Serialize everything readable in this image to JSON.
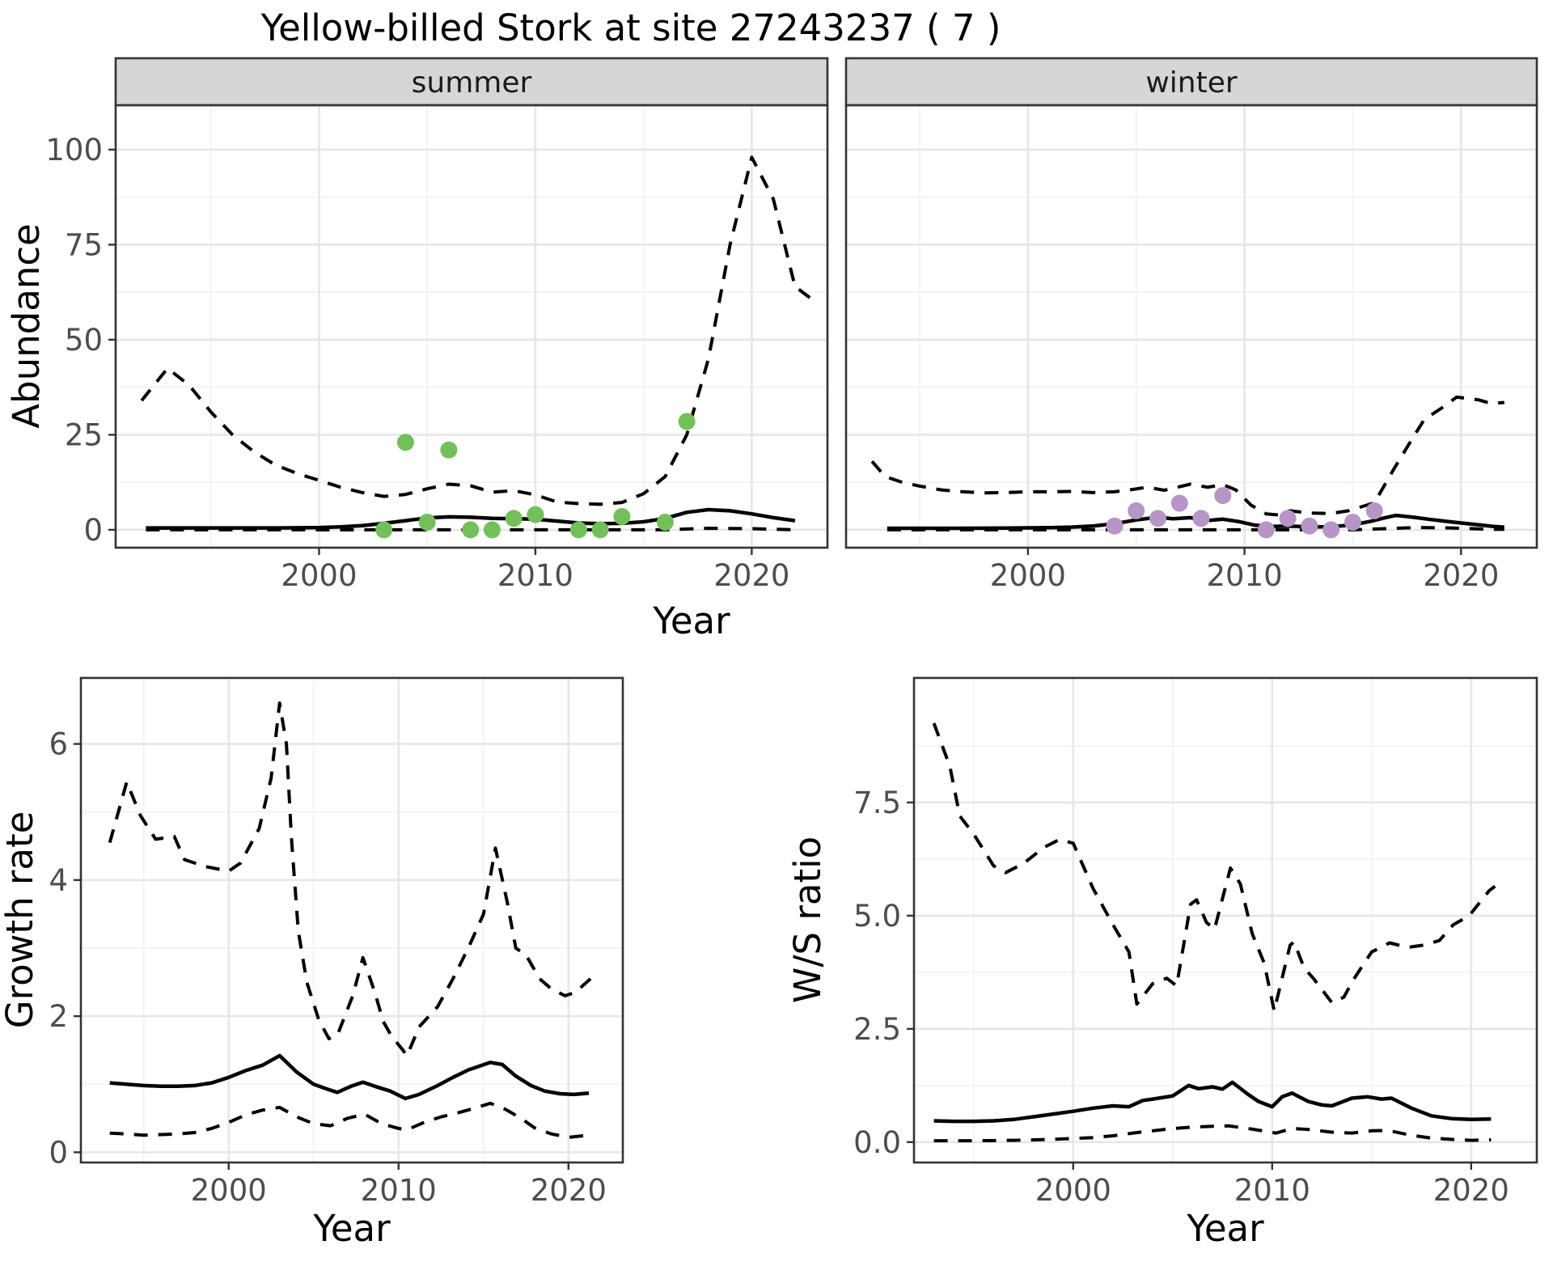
{
  "title": "Yellow-billed Stork at site 27243237 ( 7 )",
  "labels": {
    "abundance": "Abundance",
    "year": "Year",
    "growth_rate": "Growth rate",
    "ws_ratio": "W/S ratio"
  },
  "facets": {
    "summer": "summer",
    "winter": "winter"
  },
  "colors": {
    "summer_points": "#73c05b",
    "winter_points": "#b795c7",
    "line": "#000000",
    "strip_fill": "#d6d6d6",
    "panel_border": "#333333",
    "grid_major": "#e6e6e6",
    "grid_minor": "#f2f2f2",
    "tick_text": "#4d4d4d"
  },
  "chart_data": [
    {
      "id": "abundance-summer",
      "type": "line",
      "facet": "summer",
      "title": "",
      "xlabel": "Year",
      "ylabel": "Abundance",
      "xlim": [
        1990.6,
        2023.5
      ],
      "ylim": [
        -4.7,
        111.7
      ],
      "xticks": [
        2000,
        2010,
        2020
      ],
      "xtick_labels": [
        "2000",
        "2010",
        "2020"
      ],
      "yticks": [
        0,
        25,
        50,
        75,
        100
      ],
      "ytick_labels": [
        "0",
        "25",
        "50",
        "75",
        "100"
      ],
      "grid": true,
      "series": [
        {
          "name": "upper-95ci",
          "style": "dashed",
          "x": [
            1991.8,
            1993,
            1994,
            1995,
            1996,
            1997,
            1998,
            1999,
            2000,
            2001,
            2002,
            2003,
            2004,
            2005,
            2006,
            2007,
            2008,
            2009,
            2010,
            2011,
            2012,
            2013,
            2014,
            2015,
            2016,
            2017,
            2018,
            2019,
            2020,
            2021,
            2022,
            2022.7
          ],
          "y": [
            34,
            42.5,
            38,
            31,
            25,
            20.5,
            17,
            14.8,
            13,
            11.2,
            9.8,
            8.8,
            9.3,
            10.8,
            12,
            11.6,
            9.9,
            10.3,
            9.2,
            7.3,
            6.9,
            6.7,
            7.2,
            9.5,
            14,
            25,
            45,
            75,
            98,
            87,
            64,
            61
          ]
        },
        {
          "name": "median",
          "style": "solid",
          "x": [
            1992,
            1994,
            1996,
            1998,
            2000,
            2001,
            2002,
            2003,
            2004,
            2005,
            2006,
            2007,
            2008,
            2009,
            2010,
            2011,
            2012,
            2013,
            2014,
            2015,
            2016,
            2017,
            2018,
            2019,
            2020,
            2021,
            2022
          ],
          "y": [
            0.5,
            0.5,
            0.5,
            0.5,
            0.6,
            0.8,
            1.1,
            1.7,
            2.4,
            3.1,
            3.4,
            3.3,
            3.0,
            2.9,
            2.8,
            2.3,
            1.8,
            1.6,
            1.7,
            2.1,
            3.0,
            4.6,
            5.3,
            5.0,
            4.2,
            3.2,
            2.4
          ]
        },
        {
          "name": "lower-95ci",
          "style": "dashed",
          "x": [
            1992,
            2000,
            2010,
            2016,
            2018,
            2020,
            2022
          ],
          "y": [
            0,
            0,
            0,
            0,
            0.4,
            0.3,
            0
          ]
        }
      ],
      "observations": {
        "color": "summer_points",
        "x": [
          2003,
          2004,
          2005,
          2006,
          2007,
          2008,
          2009,
          2010,
          2012,
          2013,
          2014,
          2016,
          2017
        ],
        "y": [
          0,
          23,
          2,
          21,
          0,
          0,
          3,
          4,
          0,
          0,
          3.5,
          2,
          28.5
        ]
      }
    },
    {
      "id": "abundance-winter",
      "type": "line",
      "facet": "winter",
      "title": "",
      "xlabel": "Year",
      "ylabel": "Abundance",
      "xlim": [
        1991.6,
        2023.5
      ],
      "ylim": [
        -4.7,
        111.7
      ],
      "xticks": [
        2000,
        2010,
        2020
      ],
      "xtick_labels": [
        "2000",
        "2010",
        "2020"
      ],
      "yticks": [
        0,
        25,
        50,
        75,
        100
      ],
      "ytick_labels": [
        "0",
        "25",
        "50",
        "75",
        "100"
      ],
      "grid": true,
      "series": [
        {
          "name": "upper-95ci",
          "style": "dashed",
          "x": [
            1992.8,
            1993.4,
            1994.2,
            1995,
            1996,
            1997,
            1998,
            1999,
            2000,
            2001,
            2002,
            2003,
            2004,
            2004.6,
            2005.5,
            2006.3,
            2007.5,
            2008.3,
            2009,
            2009.6,
            2010.3,
            2011,
            2011.6,
            2012.1,
            2013,
            2014,
            2014.8,
            2016,
            2016.9,
            2017.7,
            2018.3,
            2019.1,
            2019.8,
            2020.8,
            2021.4,
            2022
          ],
          "y": [
            18,
            14,
            12.5,
            11.5,
            10.5,
            10,
            9.7,
            9.8,
            10,
            10,
            10.1,
            9.8,
            10,
            10.4,
            11.2,
            10.4,
            12,
            11.2,
            11.9,
            10.5,
            6.5,
            4.2,
            3.9,
            5,
            4.4,
            4.3,
            5,
            7.1,
            16,
            23.5,
            29,
            32,
            34.9,
            34.2,
            33.2,
            33.5
          ]
        },
        {
          "name": "median",
          "style": "solid",
          "x": [
            1993.5,
            1995,
            1997,
            1999,
            2001,
            2002,
            2003,
            2004,
            2005,
            2006,
            2006.7,
            2007.5,
            2008.2,
            2009,
            2009.7,
            2010.5,
            2011.3,
            2012,
            2013,
            2014,
            2015,
            2015.8,
            2016.5,
            2017,
            2017.8,
            2018.6,
            2019.5,
            2020.5,
            2021.5,
            2022
          ],
          "y": [
            0.4,
            0.4,
            0.4,
            0.45,
            0.55,
            0.7,
            1.0,
            1.6,
            2.6,
            3.3,
            2.9,
            3.2,
            2.4,
            2.8,
            2.2,
            1.2,
            0.9,
            1.0,
            0.8,
            0.8,
            1.3,
            2.2,
            3.2,
            3.8,
            3.3,
            2.7,
            2.1,
            1.5,
            0.9,
            0.7
          ]
        },
        {
          "name": "lower-95ci",
          "style": "dashed",
          "x": [
            1993.5,
            2000,
            2010,
            2015,
            2016.5,
            2018,
            2019.5,
            2021,
            2022
          ],
          "y": [
            0,
            0,
            0,
            0,
            0.3,
            0.6,
            0.5,
            0.2,
            0.1
          ]
        }
      ],
      "observations": {
        "color": "winter_points",
        "x": [
          2004,
          2005,
          2006,
          2007,
          2008,
          2009,
          2011,
          2012,
          2013,
          2014,
          2015,
          2016
        ],
        "y": [
          1,
          5,
          3,
          7,
          3,
          9,
          0,
          3,
          1,
          0,
          2,
          5
        ]
      }
    },
    {
      "id": "growth-rate",
      "type": "line",
      "facet": "",
      "title": "",
      "xlabel": "Year",
      "ylabel": "Growth rate",
      "xlim": [
        1991.3,
        2023.2
      ],
      "ylim": [
        -0.15,
        6.97
      ],
      "xticks": [
        2000,
        2010,
        2020
      ],
      "xtick_labels": [
        "2000",
        "2010",
        "2020"
      ],
      "yticks": [
        0,
        2,
        4,
        6
      ],
      "ytick_labels": [
        "0",
        "2",
        "4",
        "6"
      ],
      "grid": true,
      "series": [
        {
          "name": "upper-95ci",
          "style": "dashed",
          "x": [
            1993,
            1994,
            1994.8,
            1995.7,
            1996.8,
            1997.4,
            1998.6,
            2000,
            2000.7,
            2001.8,
            2002.5,
            2003,
            2003.4,
            2003.7,
            2004.1,
            2004.6,
            2005.3,
            2005.9,
            2006.4,
            2007.3,
            2007.9,
            2008.6,
            2009.1,
            2009.6,
            2010.1,
            2010.5,
            2011.2,
            2012.3,
            2013.2,
            2014.1,
            2015,
            2015.7,
            2016.4,
            2016.9,
            2017.5,
            2018.3,
            2019,
            2019.8,
            2020.4,
            2021.3
          ],
          "y": [
            4.55,
            5.44,
            4.95,
            4.6,
            4.64,
            4.3,
            4.2,
            4.13,
            4.25,
            4.76,
            5.5,
            6.6,
            6.0,
            4.6,
            3.25,
            2.5,
            1.95,
            1.67,
            1.72,
            2.3,
            2.86,
            2.35,
            1.92,
            1.7,
            1.55,
            1.42,
            1.84,
            2.14,
            2.55,
            3.0,
            3.5,
            4.47,
            3.67,
            3.0,
            2.9,
            2.55,
            2.4,
            2.3,
            2.35,
            2.55
          ]
        },
        {
          "name": "median",
          "style": "solid",
          "x": [
            1993,
            1994,
            1995,
            1996,
            1997,
            1998,
            1999,
            2000,
            2001,
            2002,
            2003,
            2004,
            2005,
            2005.9,
            2006.4,
            2007.2,
            2007.9,
            2008.6,
            2009.5,
            2010.4,
            2011.2,
            2012.3,
            2013.2,
            2014.1,
            2015.4,
            2016.1,
            2016.9,
            2017.8,
            2018.6,
            2019.5,
            2020.3,
            2021.2
          ],
          "y": [
            1.02,
            1.0,
            0.98,
            0.97,
            0.97,
            0.98,
            1.02,
            1.1,
            1.2,
            1.28,
            1.42,
            1.18,
            1.0,
            0.92,
            0.88,
            0.97,
            1.03,
            0.97,
            0.9,
            0.79,
            0.85,
            0.98,
            1.1,
            1.21,
            1.32,
            1.29,
            1.12,
            0.98,
            0.9,
            0.86,
            0.85,
            0.87
          ]
        },
        {
          "name": "lower-95ci",
          "style": "dashed",
          "x": [
            1993,
            1994,
            1995,
            1996,
            1997,
            1998,
            1999,
            2000,
            2001,
            2002,
            2003,
            2004,
            2005,
            2006,
            2007,
            2008,
            2009,
            2010,
            2010.5,
            2011.5,
            2012.5,
            2013.5,
            2014.5,
            2015.4,
            2016.3,
            2017.2,
            2018,
            2019,
            2020,
            2021.2
          ],
          "y": [
            0.28,
            0.27,
            0.25,
            0.26,
            0.27,
            0.29,
            0.35,
            0.44,
            0.55,
            0.62,
            0.66,
            0.52,
            0.42,
            0.39,
            0.5,
            0.56,
            0.42,
            0.35,
            0.33,
            0.44,
            0.52,
            0.58,
            0.65,
            0.72,
            0.63,
            0.5,
            0.36,
            0.27,
            0.22,
            0.25
          ]
        }
      ]
    },
    {
      "id": "ws-ratio",
      "type": "line",
      "facet": "",
      "title": "",
      "xlabel": "Year",
      "ylabel": "W/S ratio",
      "xlim": [
        1992.0,
        2023.3
      ],
      "ylim": [
        -0.45,
        10.25
      ],
      "xticks": [
        2000,
        2010,
        2020
      ],
      "xtick_labels": [
        "2000",
        "2010",
        "2020"
      ],
      "yticks": [
        0,
        2.5,
        5,
        7.5
      ],
      "ytick_labels": [
        "0.0",
        "2.5",
        "5.0",
        "7.5"
      ],
      "grid": true,
      "series": [
        {
          "name": "upper-95ci",
          "style": "dashed",
          "x": [
            1993,
            1993.8,
            1994.3,
            1995,
            1996,
            1996.6,
            1997.5,
            1998.5,
            1999.3,
            2000,
            2001,
            2002,
            2002.8,
            2003.2,
            2004,
            2004.7,
            2005.2,
            2005.9,
            2006.2,
            2006.7,
            2007.1,
            2007.9,
            2008.4,
            2009,
            2009.6,
            2010.1,
            2010.9,
            2011.1,
            2011.6,
            2012.1,
            2013,
            2013.6,
            2014.1,
            2015,
            2015.9,
            2016.8,
            2017.6,
            2018.4,
            2019.1,
            2019.9,
            2020.9,
            2021.2
          ],
          "y": [
            9.25,
            8.3,
            7.2,
            6.8,
            6.1,
            5.95,
            6.15,
            6.5,
            6.68,
            6.6,
            5.6,
            4.8,
            4.2,
            3.05,
            3.5,
            3.62,
            3.45,
            5.25,
            5.35,
            4.85,
            4.7,
            6.05,
            5.7,
            4.6,
            3.95,
            2.9,
            4.35,
            4.42,
            3.85,
            3.6,
            3.08,
            3.2,
            3.6,
            4.2,
            4.4,
            4.3,
            4.35,
            4.45,
            4.8,
            5.0,
            5.55,
            5.65
          ]
        },
        {
          "name": "median",
          "style": "solid",
          "x": [
            1993,
            1994,
            1995,
            1996,
            1997,
            1998,
            1999,
            2000,
            2001,
            2002,
            2002.8,
            2003.5,
            2004,
            2005,
            2005.8,
            2006.3,
            2007,
            2007.5,
            2008,
            2008.8,
            2009.3,
            2010,
            2010.5,
            2011,
            2011.8,
            2012.5,
            2013,
            2014,
            2014.8,
            2015.5,
            2016,
            2017,
            2018,
            2019,
            2020,
            2021
          ],
          "y": [
            0.47,
            0.46,
            0.46,
            0.47,
            0.5,
            0.56,
            0.62,
            0.68,
            0.75,
            0.8,
            0.78,
            0.92,
            0.95,
            1.02,
            1.25,
            1.18,
            1.22,
            1.17,
            1.32,
            1.05,
            0.9,
            0.78,
            1.0,
            1.08,
            0.9,
            0.82,
            0.8,
            0.97,
            1.0,
            0.95,
            0.97,
            0.75,
            0.58,
            0.52,
            0.5,
            0.51
          ]
        },
        {
          "name": "lower-95ci",
          "style": "dashed",
          "x": [
            1993,
            1995,
            1997,
            1999,
            2000,
            2001,
            2002,
            2003,
            2004,
            2005,
            2006,
            2007,
            2007.8,
            2008.8,
            2009.5,
            2010.2,
            2011,
            2011.8,
            2013,
            2014,
            2015,
            2015.8,
            2017,
            2018,
            2019,
            2020,
            2021
          ],
          "y": [
            0.03,
            0.03,
            0.04,
            0.06,
            0.08,
            0.1,
            0.14,
            0.2,
            0.25,
            0.3,
            0.33,
            0.35,
            0.36,
            0.3,
            0.25,
            0.2,
            0.3,
            0.28,
            0.22,
            0.2,
            0.25,
            0.26,
            0.15,
            0.09,
            0.06,
            0.04,
            0.05
          ]
        }
      ]
    }
  ]
}
